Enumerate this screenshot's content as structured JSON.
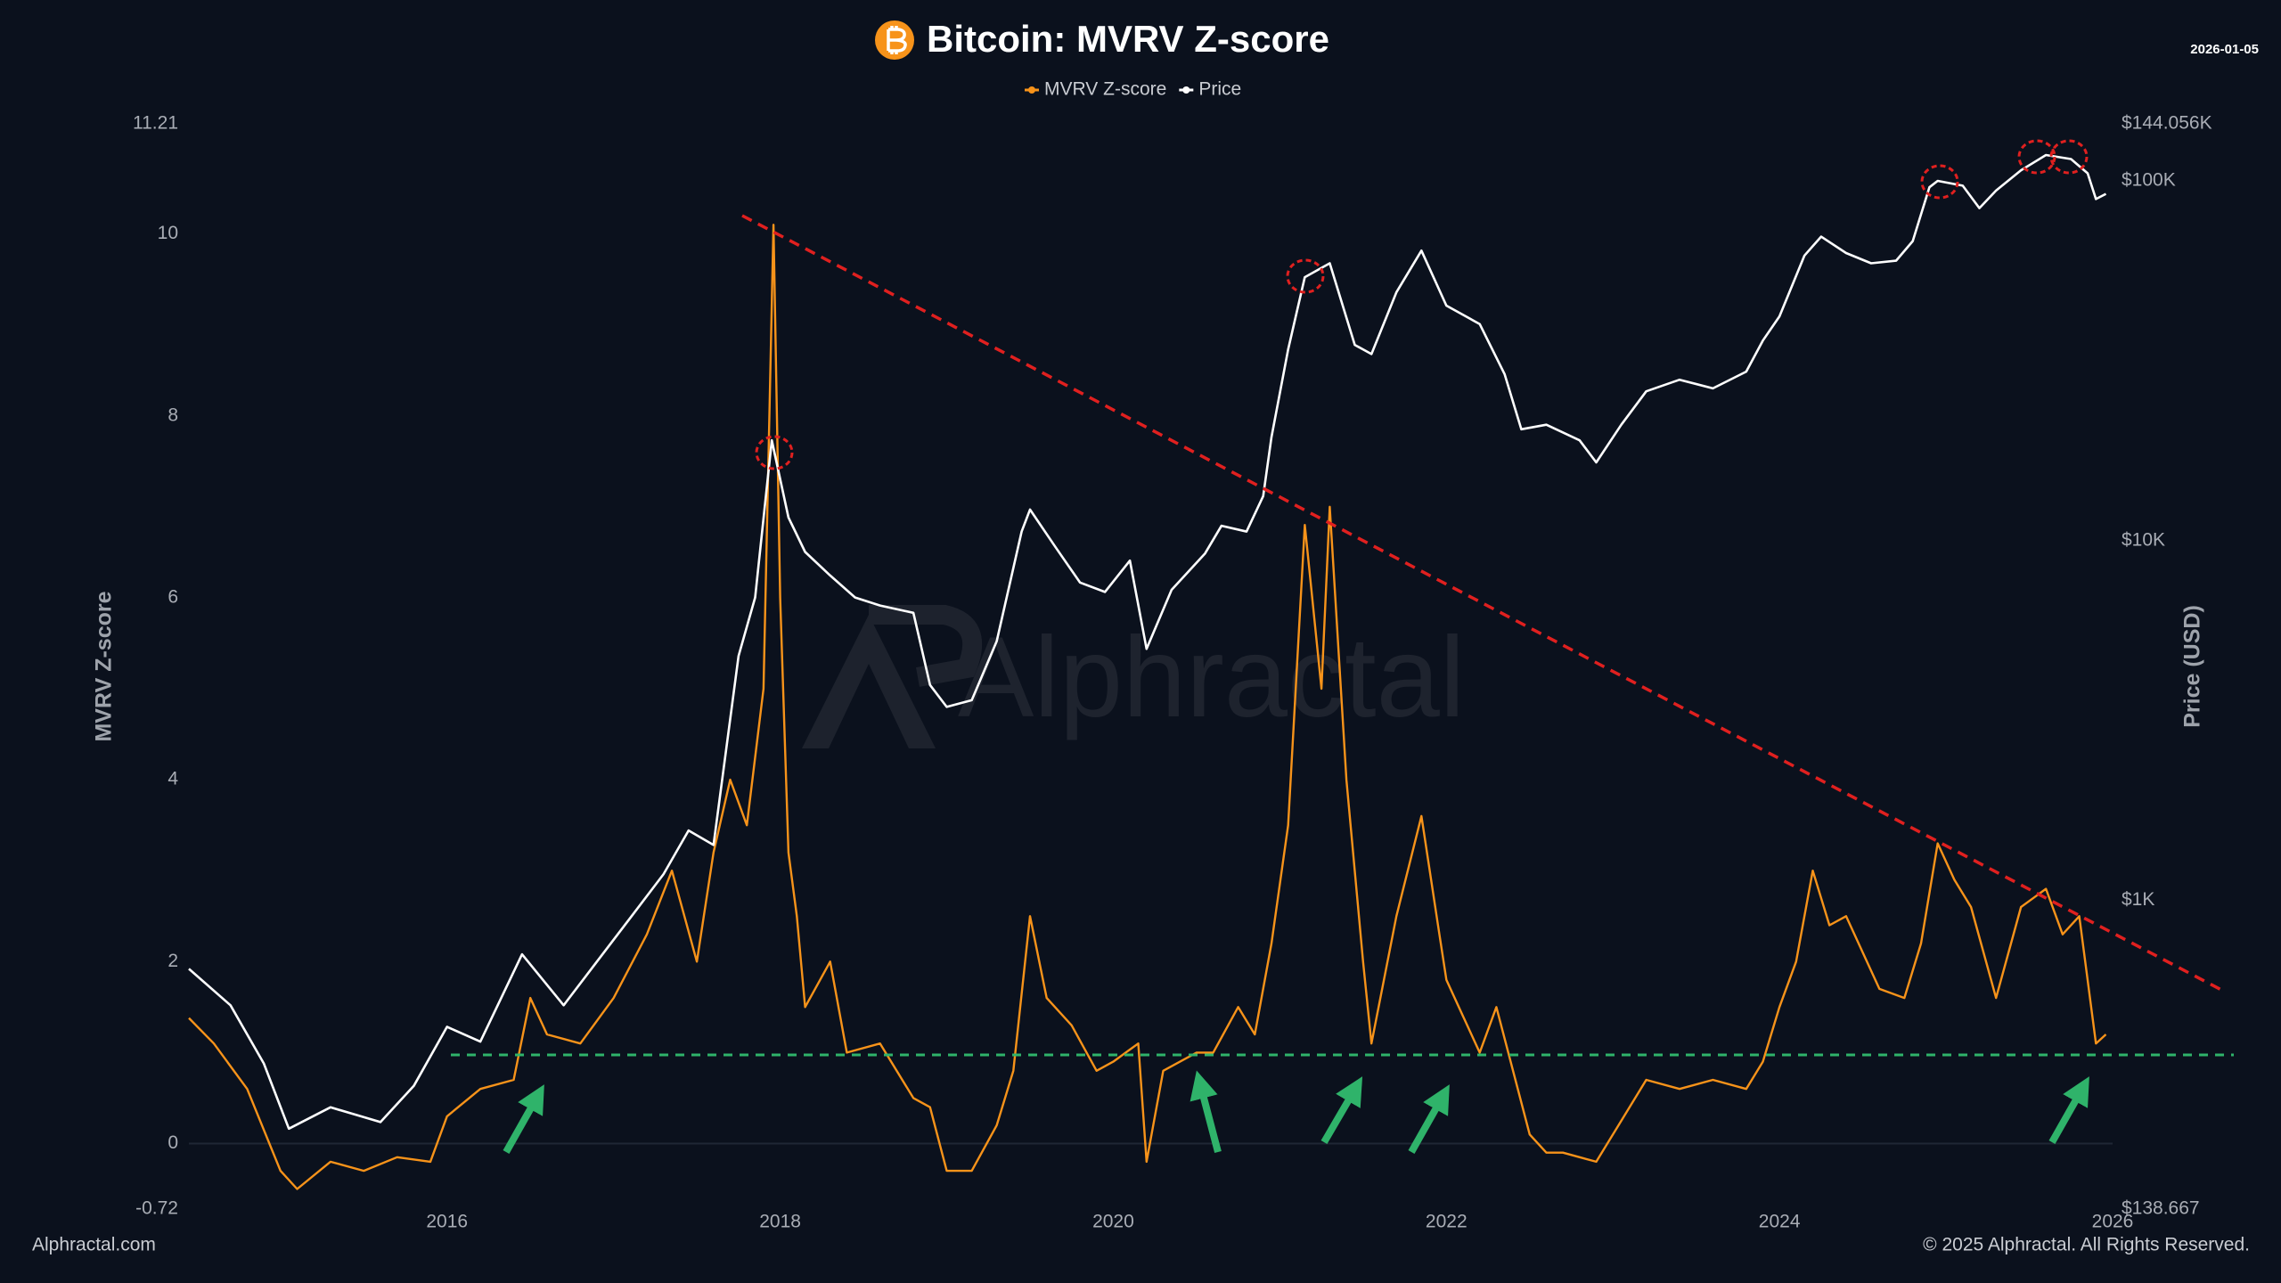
{
  "chart_data": {
    "type": "line",
    "title": "Bitcoin: MVRV Z-score",
    "date_stamp": "2026-01-05",
    "watermark": "Alphractal",
    "footer_left": "Alphractal.com",
    "footer_right": "© 2025 Alphractal. All Rights Reserved.",
    "ylabel": "MVRV Z-score",
    "y2label": "Price (USD)",
    "xlim": [
      2014.45,
      2026.0
    ],
    "xticks": [
      2016,
      2018,
      2020,
      2022,
      2024,
      2026
    ],
    "ylim": [
      -0.72,
      11.21
    ],
    "yticks": [
      -0.72,
      0,
      2,
      4,
      6,
      8,
      10,
      11.21
    ],
    "y2lim": [
      138.667,
      144056
    ],
    "y2scale": "log",
    "y2ticks": [
      {
        "value": 138.667,
        "label": "$138.667"
      },
      {
        "value": 1000,
        "label": "$1K"
      },
      {
        "value": 10000,
        "label": "$10K"
      },
      {
        "value": 100000,
        "label": "$100K"
      },
      {
        "value": 144056,
        "label": "$144.056K"
      }
    ],
    "grid": false,
    "series": [
      {
        "name": "MVRV Z-score",
        "color": "#f7931a",
        "x": [
          2014.45,
          2014.6,
          2014.8,
          2015.0,
          2015.1,
          2015.3,
          2015.5,
          2015.7,
          2015.9,
          2016.0,
          2016.2,
          2016.4,
          2016.5,
          2016.6,
          2016.8,
          2017.0,
          2017.2,
          2017.35,
          2017.5,
          2017.6,
          2017.7,
          2017.8,
          2017.9,
          2017.96,
          2018.0,
          2018.05,
          2018.1,
          2018.15,
          2018.3,
          2018.4,
          2018.6,
          2018.8,
          2018.9,
          2019.0,
          2019.15,
          2019.3,
          2019.4,
          2019.5,
          2019.6,
          2019.75,
          2019.9,
          2020.0,
          2020.15,
          2020.2,
          2020.3,
          2020.5,
          2020.6,
          2020.75,
          2020.85,
          2020.95,
          2021.05,
          2021.15,
          2021.25,
          2021.3,
          2021.4,
          2021.5,
          2021.55,
          2021.7,
          2021.85,
          2021.95,
          2022.0,
          2022.1,
          2022.2,
          2022.3,
          2022.4,
          2022.5,
          2022.6,
          2022.7,
          2022.8,
          2022.9,
          2023.0,
          2023.2,
          2023.4,
          2023.6,
          2023.8,
          2023.9,
          2024.0,
          2024.1,
          2024.2,
          2024.3,
          2024.4,
          2024.6,
          2024.75,
          2024.85,
          2024.95,
          2025.05,
          2025.15,
          2025.3,
          2025.45,
          2025.6,
          2025.7,
          2025.8,
          2025.9,
          2025.96
        ],
        "values": [
          1.38,
          1.1,
          0.6,
          -0.3,
          -0.5,
          -0.2,
          -0.3,
          -0.15,
          -0.2,
          0.3,
          0.6,
          0.7,
          1.6,
          1.2,
          1.1,
          1.6,
          2.3,
          3.0,
          2.0,
          3.2,
          4.0,
          3.5,
          5.0,
          10.1,
          6.0,
          3.2,
          2.5,
          1.5,
          2.0,
          1.0,
          1.1,
          0.5,
          0.4,
          -0.3,
          -0.3,
          0.2,
          0.8,
          2.5,
          1.6,
          1.3,
          0.8,
          0.9,
          1.1,
          -0.2,
          0.8,
          1.0,
          1.0,
          1.5,
          1.2,
          2.2,
          3.5,
          6.8,
          5.0,
          7.0,
          4.0,
          2.0,
          1.1,
          2.5,
          3.6,
          2.4,
          1.8,
          1.4,
          1.0,
          1.5,
          0.8,
          0.1,
          -0.1,
          -0.1,
          -0.15,
          -0.2,
          0.1,
          0.7,
          0.6,
          0.7,
          0.6,
          0.9,
          1.5,
          2.0,
          3.0,
          2.4,
          2.5,
          1.7,
          1.6,
          2.2,
          3.3,
          2.9,
          2.6,
          1.6,
          2.6,
          2.8,
          2.3,
          2.5,
          1.1,
          1.2
        ]
      },
      {
        "name": "Price",
        "color": "#ffffff",
        "axis": "y2",
        "x": [
          2014.45,
          2014.7,
          2014.9,
          2015.05,
          2015.3,
          2015.6,
          2015.8,
          2016.0,
          2016.2,
          2016.45,
          2016.7,
          2016.9,
          2017.1,
          2017.3,
          2017.45,
          2017.6,
          2017.75,
          2017.85,
          2017.95,
          2018.05,
          2018.15,
          2018.3,
          2018.45,
          2018.6,
          2018.8,
          2018.9,
          2019.0,
          2019.15,
          2019.3,
          2019.45,
          2019.5,
          2019.65,
          2019.8,
          2019.95,
          2020.1,
          2020.2,
          2020.35,
          2020.55,
          2020.65,
          2020.8,
          2020.9,
          2020.95,
          2021.05,
          2021.15,
          2021.3,
          2021.45,
          2021.55,
          2021.7,
          2021.85,
          2022.0,
          2022.2,
          2022.35,
          2022.45,
          2022.6,
          2022.8,
          2022.9,
          2023.05,
          2023.2,
          2023.4,
          2023.6,
          2023.8,
          2023.9,
          2024.0,
          2024.15,
          2024.25,
          2024.4,
          2024.55,
          2024.7,
          2024.8,
          2024.9,
          2024.95,
          2025.1,
          2025.2,
          2025.3,
          2025.45,
          2025.6,
          2025.75,
          2025.85,
          2025.9,
          2025.96
        ],
        "values": [
          645,
          511,
          352,
          232,
          266,
          242,
          305,
          445,
          405,
          708,
          511,
          676,
          894,
          1183,
          1564,
          1425,
          4780,
          6950,
          19000,
          11600,
          9300,
          8000,
          6950,
          6600,
          6300,
          3970,
          3450,
          3600,
          5250,
          10600,
          12200,
          9640,
          7650,
          7200,
          8800,
          5000,
          7300,
          9200,
          11000,
          10600,
          13300,
          19400,
          34000,
          54000,
          59000,
          35000,
          33000,
          49000,
          64000,
          45000,
          40000,
          29000,
          20400,
          21000,
          19000,
          16500,
          21000,
          26000,
          28000,
          26500,
          29500,
          36000,
          42000,
          62000,
          70000,
          63000,
          59000,
          60000,
          68000,
          96000,
          100000,
          97000,
          84000,
          94000,
          107000,
          118000,
          115000,
          105000,
          89000,
          92000
        ]
      }
    ]
  }
}
